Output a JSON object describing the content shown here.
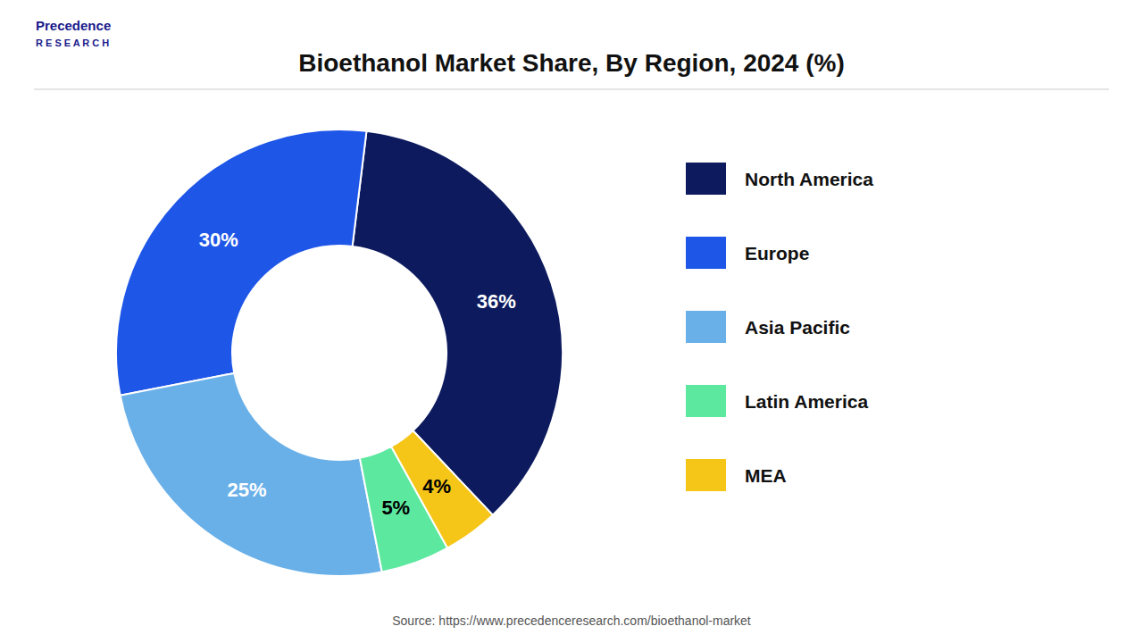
{
  "chart_data": {
    "type": "pie",
    "title": "Bioethanol Market Share, By Region, 2024 (%)",
    "categories": [
      "North America",
      "Europe",
      "Asia Pacific",
      "Latin America",
      "MEA"
    ],
    "values": [
      36,
      30,
      25,
      5,
      4
    ],
    "value_labels": [
      "36%",
      "30%",
      "25%",
      "5%",
      "4%"
    ],
    "colors": [
      "#0d1b5e",
      "#1e56e8",
      "#6ab0e8",
      "#5de8a0",
      "#f5c518"
    ],
    "data_labels": true,
    "legend": "right",
    "annotations": [
      "Precedence",
      "R E S E A R C H",
      "Source: https://www.precedenceresearch.com/bioethanol-market"
    ]
  }
}
